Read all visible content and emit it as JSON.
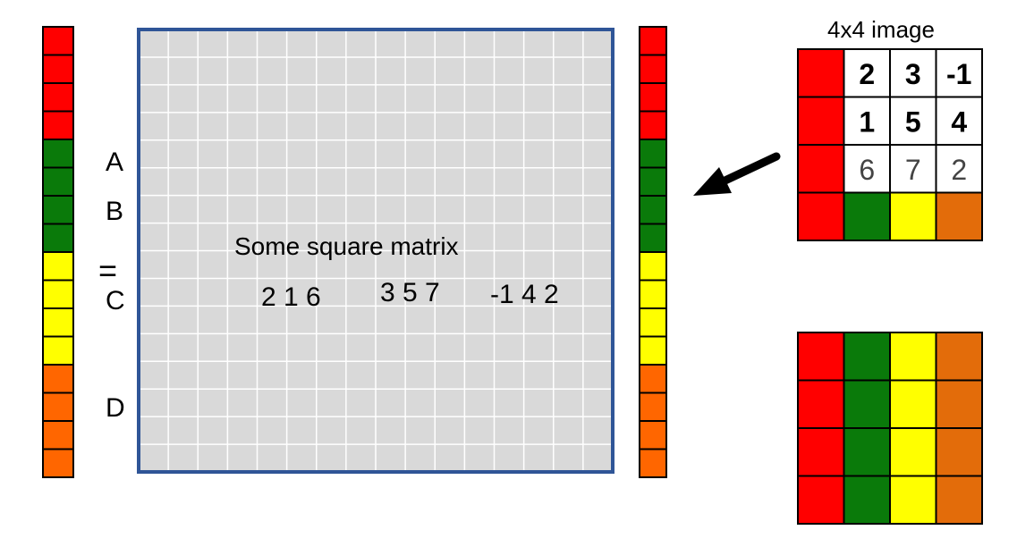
{
  "colors": {
    "red": "#ff0000",
    "green": "#0a7a0a",
    "yellow": "#ffff00",
    "orange": "#ff6600",
    "orange_light": "#e36c0a",
    "matrix_fill": "#d9d9d9",
    "matrix_border": "#2f5597",
    "grid_line": "#ffffff"
  },
  "left_vector": {
    "cells": [
      "red",
      "red",
      "red",
      "red",
      "green",
      "green",
      "green",
      "green",
      "yellow",
      "yellow",
      "yellow",
      "yellow",
      "orange",
      "orange",
      "orange",
      "orange"
    ]
  },
  "right_vector": {
    "cells": [
      "red",
      "red",
      "red",
      "red",
      "green",
      "green",
      "green",
      "green",
      "yellow",
      "yellow",
      "yellow",
      "yellow",
      "orange",
      "orange",
      "orange",
      "orange"
    ]
  },
  "labels": {
    "a": "A",
    "b": "B",
    "equals": "=",
    "c": "C",
    "d": "D"
  },
  "matrix": {
    "caption": "Some square matrix",
    "groups": [
      "2 1 6",
      "3 5 7",
      "-1 4 2"
    ]
  },
  "image": {
    "title": "4x4 image",
    "rows": [
      [
        "2",
        "3",
        "-1"
      ],
      [
        "1",
        "5",
        "4"
      ],
      [
        "6",
        "7",
        "2"
      ]
    ],
    "bold_rows": [
      true,
      true,
      false
    ]
  },
  "result_grid": {
    "columns": [
      "red",
      "green",
      "yellow",
      "orange_light"
    ]
  }
}
